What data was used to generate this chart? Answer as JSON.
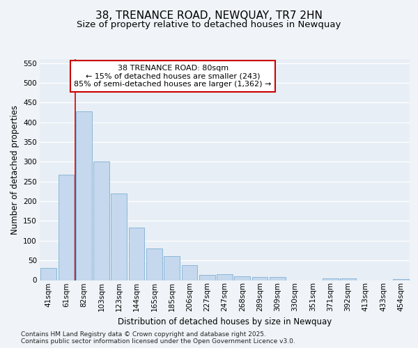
{
  "title": "38, TRENANCE ROAD, NEWQUAY, TR7 2HN",
  "subtitle": "Size of property relative to detached houses in Newquay",
  "xlabel": "Distribution of detached houses by size in Newquay",
  "ylabel": "Number of detached properties",
  "categories": [
    "41sqm",
    "61sqm",
    "82sqm",
    "103sqm",
    "123sqm",
    "144sqm",
    "165sqm",
    "185sqm",
    "206sqm",
    "227sqm",
    "247sqm",
    "268sqm",
    "289sqm",
    "309sqm",
    "330sqm",
    "351sqm",
    "371sqm",
    "392sqm",
    "413sqm",
    "433sqm",
    "454sqm"
  ],
  "values": [
    30,
    268,
    428,
    300,
    220,
    133,
    80,
    60,
    38,
    13,
    15,
    9,
    8,
    8,
    0,
    0,
    5,
    5,
    0,
    0,
    2
  ],
  "bar_color": "#c5d8ed",
  "bar_edge_color": "#7eb0d5",
  "background_color": "#f0f4f8",
  "plot_bg_color": "#e8eef5",
  "grid_color": "#ffffff",
  "annotation_line1": "38 TRENANCE ROAD: 80sqm",
  "annotation_line2": "← 15% of detached houses are smaller (243)",
  "annotation_line3": "85% of semi-detached houses are larger (1,362) →",
  "annotation_box_color": "#ffffff",
  "annotation_box_edge_color": "#cc0000",
  "vline_color": "#cc0000",
  "ylim": [
    0,
    560
  ],
  "yticks": [
    0,
    50,
    100,
    150,
    200,
    250,
    300,
    350,
    400,
    450,
    500,
    550
  ],
  "footer": "Contains HM Land Registry data © Crown copyright and database right 2025.\nContains public sector information licensed under the Open Government Licence v3.0.",
  "title_fontsize": 11,
  "subtitle_fontsize": 9.5,
  "axis_label_fontsize": 8.5,
  "tick_fontsize": 7.5,
  "annotation_fontsize": 8,
  "footer_fontsize": 6.5
}
